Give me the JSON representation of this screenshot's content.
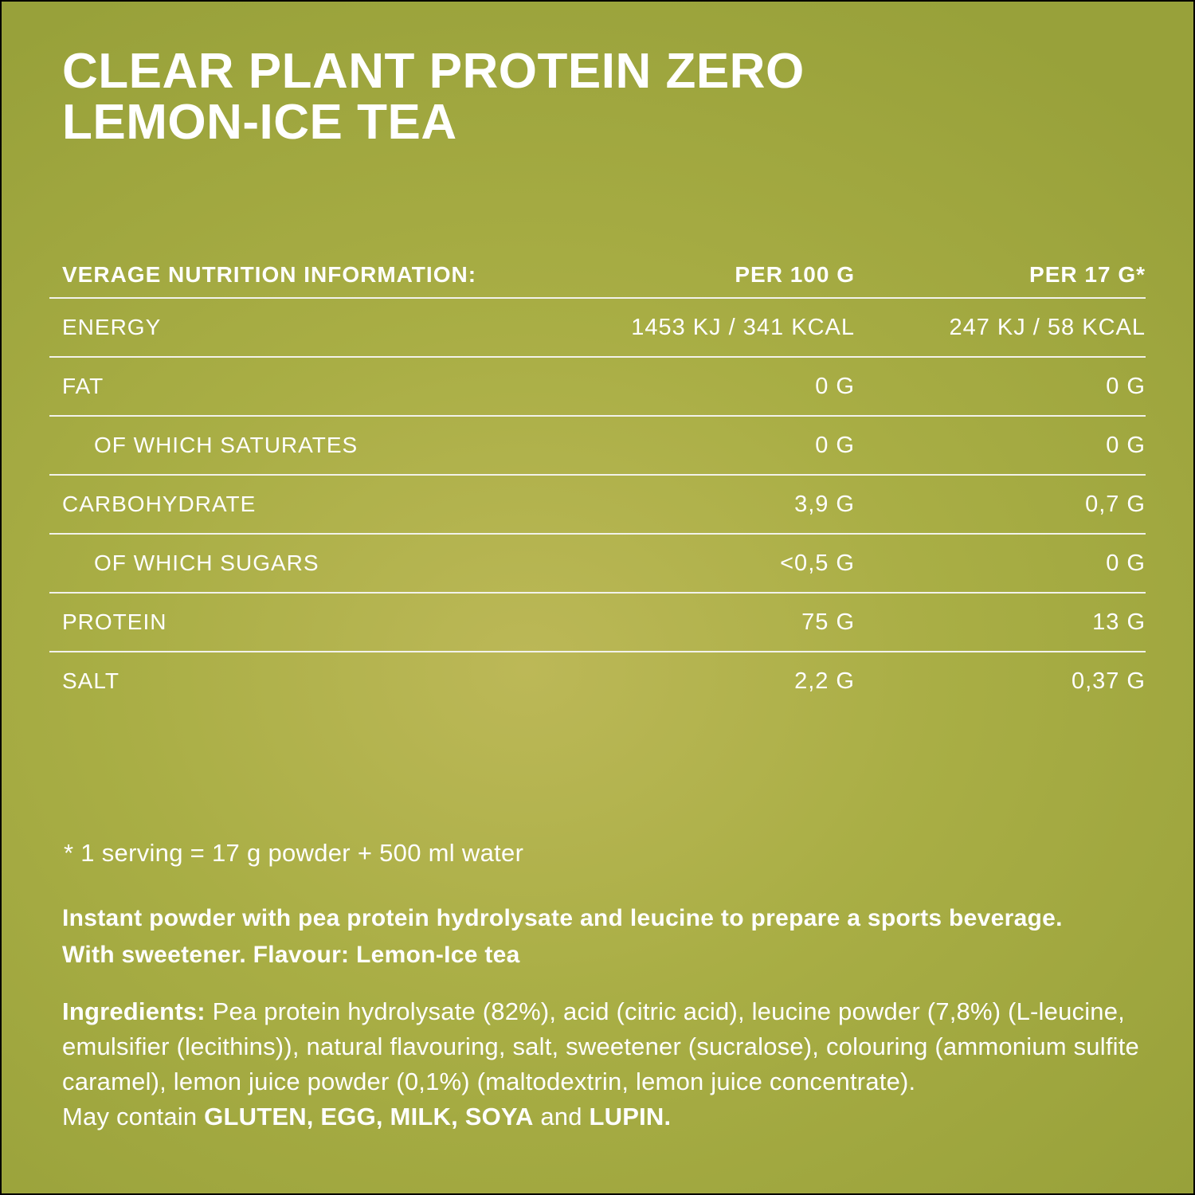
{
  "colors": {
    "bg_center": "#bcb857",
    "bg_mid": "#a9ae45",
    "bg_edge": "#98a13a",
    "text": "#ffffff",
    "divider": "#f2f2ea",
    "frame": "#000000"
  },
  "header": {
    "title_lines": [
      "CLEAR PLANT PROTEIN ZERO",
      "LEMON-ICE TEA"
    ]
  },
  "nutrition_table": {
    "header": {
      "label": "VERAGE NUTRITION INFORMATION:",
      "col1": "PER 100 G",
      "col2": "PER 17 G*"
    },
    "rows": [
      {
        "label": "ENERGY",
        "per100": "1453 KJ / 341 KCAL",
        "per17": "247 KJ / 58 KCAL",
        "indent": false
      },
      {
        "label": "FAT",
        "per100": "0 G",
        "per17": "0 G",
        "indent": false
      },
      {
        "label": "OF WHICH SATURATES",
        "per100": "0 G",
        "per17": "0 G",
        "indent": true
      },
      {
        "label": "CARBOHYDRATE",
        "per100": "3,9 G",
        "per17": "0,7 G",
        "indent": false
      },
      {
        "label": "OF WHICH SUGARS",
        "per100": "<0,5 G",
        "per17": "0 G",
        "indent": true
      },
      {
        "label": "PROTEIN",
        "per100": "75 G",
        "per17": "13 G",
        "indent": false
      },
      {
        "label": "SALT",
        "per100": "2,2 G",
        "per17": "0,37 G",
        "indent": false
      }
    ]
  },
  "footnote": "* 1 serving = 17 g powder + 500 ml water",
  "description": {
    "lines": [
      "Instant powder with pea protein hydrolysate and leucine to prepare a sports beverage.",
      "With sweetener. Flavour: Lemon-Ice tea"
    ]
  },
  "ingredients": {
    "segments": [
      {
        "text": "Ingredients:",
        "bold": true
      },
      {
        "text": " Pea protein hydrolysate (82%), acid (citric acid), leucine powder (7,8%) (L-leucine, emulsifier (lecithins)), natural flavouring, salt, sweetener (sucralose), colouring (ammonium sulfite caramel), lemon juice powder (0,1%) (maltodextrin, lemon juice concentrate).",
        "bold": false
      }
    ]
  },
  "may_contain": {
    "segments": [
      {
        "text": "May contain ",
        "bold": false
      },
      {
        "text": "GLUTEN, EGG, MILK, SOYA",
        "bold": true
      },
      {
        "text": " and ",
        "bold": false
      },
      {
        "text": "LUPIN.",
        "bold": true
      }
    ]
  }
}
